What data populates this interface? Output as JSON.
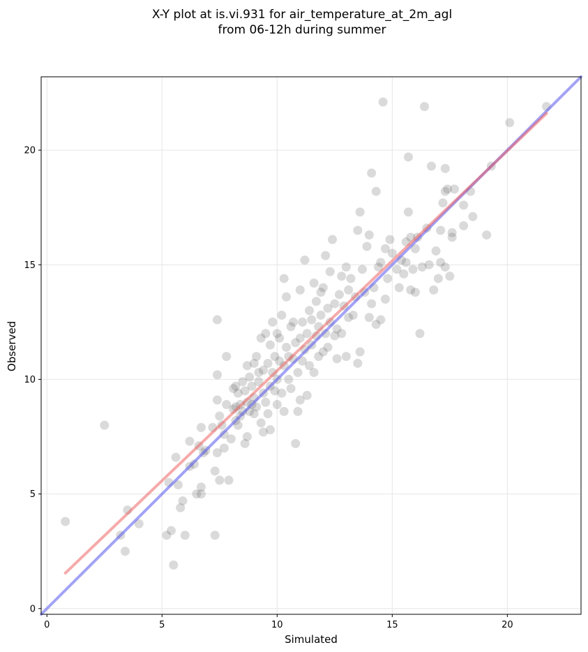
{
  "chart_data": {
    "type": "scatter",
    "title": [
      "X-Y plot at is.vi.931 for air_temperature_at_2m_agl",
      "from 06-12h during summer"
    ],
    "xlabel": "Simulated",
    "ylabel": "Observed",
    "xlim": [
      -0.25,
      23.2
    ],
    "ylim": [
      -0.25,
      23.2
    ],
    "xticks": [
      0,
      5,
      10,
      15,
      20
    ],
    "yticks": [
      0,
      5,
      10,
      15,
      20
    ],
    "grid": true,
    "colors": {
      "points": "#555555",
      "identity_line": "#5555ee",
      "fit_line": "#ee5555",
      "grid": "#e6e6e6"
    },
    "identity_line": {
      "x": [
        -0.25,
        23.2
      ],
      "y": [
        -0.25,
        23.2
      ]
    },
    "fit_line": {
      "x": [
        0.8,
        21.7
      ],
      "y": [
        1.55,
        21.6
      ]
    },
    "points": [
      [
        0.8,
        3.8
      ],
      [
        2.5,
        8.0
      ],
      [
        3.2,
        3.2
      ],
      [
        3.4,
        2.5
      ],
      [
        3.5,
        4.3
      ],
      [
        4.0,
        3.7
      ],
      [
        5.2,
        3.2
      ],
      [
        5.3,
        5.5
      ],
      [
        5.4,
        3.4
      ],
      [
        5.5,
        1.9
      ],
      [
        5.6,
        6.6
      ],
      [
        5.7,
        5.4
      ],
      [
        5.8,
        4.4
      ],
      [
        5.9,
        4.7
      ],
      [
        6.0,
        3.2
      ],
      [
        6.2,
        6.2
      ],
      [
        6.2,
        7.3
      ],
      [
        6.4,
        6.3
      ],
      [
        6.5,
        5.0
      ],
      [
        6.6,
        7.1
      ],
      [
        6.7,
        5.3
      ],
      [
        6.7,
        7.9
      ],
      [
        6.7,
        5.0
      ],
      [
        6.8,
        6.8
      ],
      [
        6.9,
        6.9
      ],
      [
        7.2,
        7.9
      ],
      [
        7.3,
        6.0
      ],
      [
        7.3,
        3.2
      ],
      [
        7.4,
        6.8
      ],
      [
        7.4,
        9.1
      ],
      [
        7.4,
        10.2
      ],
      [
        7.4,
        12.6
      ],
      [
        7.5,
        5.6
      ],
      [
        7.5,
        8.4
      ],
      [
        7.6,
        8.0
      ],
      [
        7.7,
        7.0
      ],
      [
        7.7,
        7.6
      ],
      [
        7.8,
        8.9
      ],
      [
        7.8,
        11.0
      ],
      [
        7.9,
        5.6
      ],
      [
        8.0,
        7.4
      ],
      [
        8.1,
        9.6
      ],
      [
        8.1,
        8.7
      ],
      [
        8.2,
        8.8
      ],
      [
        8.2,
        9.7
      ],
      [
        8.2,
        8.2
      ],
      [
        8.3,
        9.4
      ],
      [
        8.3,
        8.0
      ],
      [
        8.4,
        8.4
      ],
      [
        8.4,
        8.9
      ],
      [
        8.5,
        9.9
      ],
      [
        8.5,
        8.6
      ],
      [
        8.6,
        7.2
      ],
      [
        8.6,
        9.5
      ],
      [
        8.7,
        9.0
      ],
      [
        8.7,
        10.6
      ],
      [
        8.7,
        7.5
      ],
      [
        8.8,
        8.6
      ],
      [
        8.8,
        10.1
      ],
      [
        8.9,
        9.7
      ],
      [
        8.9,
        8.9
      ],
      [
        9.0,
        8.5
      ],
      [
        9.0,
        10.7
      ],
      [
        9.0,
        9.2
      ],
      [
        9.1,
        8.8
      ],
      [
        9.1,
        11.0
      ],
      [
        9.2,
        9.9
      ],
      [
        9.2,
        10.3
      ],
      [
        9.3,
        8.1
      ],
      [
        9.3,
        11.8
      ],
      [
        9.4,
        9.4
      ],
      [
        9.4,
        10.4
      ],
      [
        9.4,
        7.7
      ],
      [
        9.5,
        12.0
      ],
      [
        9.5,
        9.0
      ],
      [
        9.6,
        10.7
      ],
      [
        9.6,
        8.5
      ],
      [
        9.7,
        11.5
      ],
      [
        9.7,
        9.7
      ],
      [
        9.7,
        7.8
      ],
      [
        9.8,
        10.3
      ],
      [
        9.8,
        12.5
      ],
      [
        9.9,
        9.5
      ],
      [
        9.9,
        11.0
      ],
      [
        10.0,
        10.0
      ],
      [
        10.0,
        12.0
      ],
      [
        10.0,
        8.9
      ],
      [
        10.1,
        10.8
      ],
      [
        10.1,
        11.8
      ],
      [
        10.2,
        9.4
      ],
      [
        10.2,
        12.8
      ],
      [
        10.3,
        10.6
      ],
      [
        10.3,
        14.4
      ],
      [
        10.3,
        8.6
      ],
      [
        10.4,
        11.4
      ],
      [
        10.4,
        13.6
      ],
      [
        10.5,
        10.0
      ],
      [
        10.5,
        11.0
      ],
      [
        10.6,
        12.3
      ],
      [
        10.6,
        9.6
      ],
      [
        10.7,
        10.9
      ],
      [
        10.7,
        12.5
      ],
      [
        10.8,
        7.2
      ],
      [
        10.8,
        11.6
      ],
      [
        10.9,
        10.3
      ],
      [
        10.9,
        8.6
      ],
      [
        11.0,
        11.8
      ],
      [
        11.0,
        13.9
      ],
      [
        11.0,
        9.1
      ],
      [
        11.1,
        12.5
      ],
      [
        11.1,
        10.8
      ],
      [
        11.2,
        11.3
      ],
      [
        11.2,
        15.2
      ],
      [
        11.3,
        12.0
      ],
      [
        11.3,
        9.3
      ],
      [
        11.4,
        10.6
      ],
      [
        11.4,
        13.0
      ],
      [
        11.5,
        11.5
      ],
      [
        11.5,
        12.6
      ],
      [
        11.6,
        10.3
      ],
      [
        11.6,
        14.2
      ],
      [
        11.7,
        11.9
      ],
      [
        11.7,
        13.4
      ],
      [
        11.8,
        12.3
      ],
      [
        11.8,
        11.0
      ],
      [
        11.9,
        13.8
      ],
      [
        11.9,
        12.8
      ],
      [
        12.0,
        11.2
      ],
      [
        12.0,
        14.0
      ],
      [
        12.1,
        12.0
      ],
      [
        12.1,
        15.4
      ],
      [
        12.2,
        13.1
      ],
      [
        12.2,
        11.4
      ],
      [
        12.3,
        12.5
      ],
      [
        12.3,
        14.7
      ],
      [
        12.4,
        16.1
      ],
      [
        12.5,
        13.3
      ],
      [
        12.5,
        11.9
      ],
      [
        12.6,
        12.2
      ],
      [
        12.6,
        10.9
      ],
      [
        12.7,
        13.7
      ],
      [
        12.8,
        14.5
      ],
      [
        12.8,
        12.0
      ],
      [
        12.9,
        13.2
      ],
      [
        13.0,
        11.0
      ],
      [
        13.0,
        14.9
      ],
      [
        13.1,
        12.7
      ],
      [
        13.1,
        13.9
      ],
      [
        13.2,
        14.4
      ],
      [
        13.3,
        12.8
      ],
      [
        13.4,
        13.6
      ],
      [
        13.5,
        16.5
      ],
      [
        13.5,
        10.7
      ],
      [
        13.6,
        11.2
      ],
      [
        13.6,
        17.3
      ],
      [
        13.7,
        14.8
      ],
      [
        13.8,
        13.8
      ],
      [
        13.9,
        15.8
      ],
      [
        14.0,
        12.7
      ],
      [
        14.0,
        16.3
      ],
      [
        14.1,
        13.3
      ],
      [
        14.1,
        19.0
      ],
      [
        14.2,
        14.0
      ],
      [
        14.3,
        18.2
      ],
      [
        14.3,
        12.4
      ],
      [
        14.4,
        14.9
      ],
      [
        14.5,
        12.6
      ],
      [
        14.5,
        15.1
      ],
      [
        14.6,
        22.1
      ],
      [
        14.7,
        15.7
      ],
      [
        14.7,
        13.5
      ],
      [
        14.8,
        14.4
      ],
      [
        14.9,
        16.1
      ],
      [
        15.0,
        15.5
      ],
      [
        15.2,
        14.8
      ],
      [
        15.3,
        14.0
      ],
      [
        15.4,
        15.2
      ],
      [
        15.5,
        14.6
      ],
      [
        15.6,
        16.0
      ],
      [
        15.6,
        15.1
      ],
      [
        15.7,
        17.3
      ],
      [
        15.7,
        19.7
      ],
      [
        15.8,
        13.9
      ],
      [
        15.8,
        16.2
      ],
      [
        15.9,
        14.8
      ],
      [
        16.0,
        13.8
      ],
      [
        16.0,
        15.7
      ],
      [
        16.1,
        16.2
      ],
      [
        16.2,
        12.0
      ],
      [
        16.3,
        14.9
      ],
      [
        16.4,
        21.9
      ],
      [
        16.5,
        16.6
      ],
      [
        16.6,
        15.0
      ],
      [
        16.7,
        19.3
      ],
      [
        16.8,
        13.9
      ],
      [
        16.9,
        15.6
      ],
      [
        17.0,
        14.4
      ],
      [
        17.1,
        15.1
      ],
      [
        17.1,
        16.5
      ],
      [
        17.2,
        17.7
      ],
      [
        17.3,
        14.9
      ],
      [
        17.3,
        18.2
      ],
      [
        17.3,
        19.2
      ],
      [
        17.4,
        18.3
      ],
      [
        17.5,
        14.5
      ],
      [
        17.6,
        16.2
      ],
      [
        17.6,
        16.4
      ],
      [
        17.7,
        18.3
      ],
      [
        18.1,
        17.6
      ],
      [
        18.1,
        16.7
      ],
      [
        18.4,
        18.2
      ],
      [
        18.5,
        17.1
      ],
      [
        19.1,
        16.3
      ],
      [
        19.3,
        19.3
      ],
      [
        20.1,
        21.2
      ],
      [
        21.7,
        21.9
      ]
    ]
  }
}
